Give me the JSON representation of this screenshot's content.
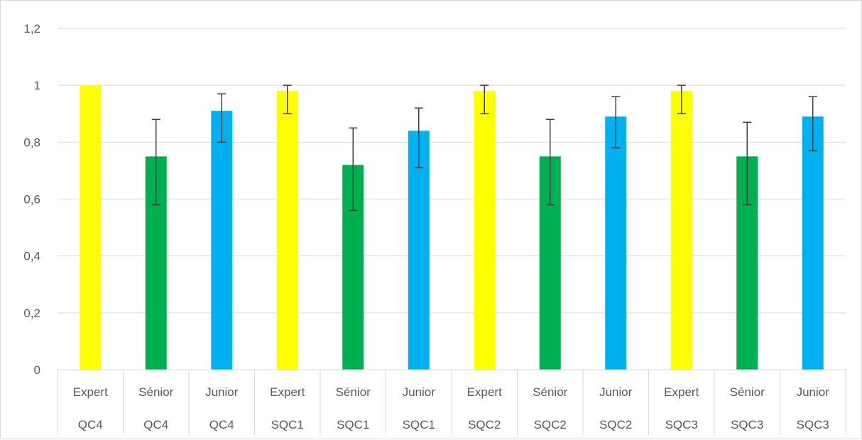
{
  "chart_data": {
    "type": "bar",
    "title": "",
    "xlabel": "",
    "ylabel": "",
    "ylim": [
      0,
      1.2
    ],
    "yticks": [
      "0",
      "0,2",
      "0,4",
      "0,6",
      "0,8",
      "1",
      "1,2"
    ],
    "ytick_values": [
      0,
      0.2,
      0.4,
      0.6,
      0.8,
      1.0,
      1.2
    ],
    "grid": true,
    "legend": "none",
    "categories": [
      {
        "level": "Expert",
        "group": "QC4"
      },
      {
        "level": "Sénior",
        "group": "QC4"
      },
      {
        "level": "Junior",
        "group": "QC4"
      },
      {
        "level": "Expert",
        "group": "SQC1"
      },
      {
        "level": "Sénior",
        "group": "SQC1"
      },
      {
        "level": "Junior",
        "group": "SQC1"
      },
      {
        "level": "Expert",
        "group": "SQC2"
      },
      {
        "level": "Sénior",
        "group": "SQC2"
      },
      {
        "level": "Junior",
        "group": "SQC2"
      },
      {
        "level": "Expert",
        "group": "SQC3"
      },
      {
        "level": "Sénior",
        "group": "SQC3"
      },
      {
        "level": "Junior",
        "group": "SQC3"
      }
    ],
    "values": [
      1.0,
      0.75,
      0.91,
      0.98,
      0.72,
      0.84,
      0.98,
      0.75,
      0.89,
      0.98,
      0.75,
      0.89
    ],
    "error_low": [
      null,
      0.58,
      0.8,
      0.9,
      0.56,
      0.71,
      0.9,
      0.58,
      0.78,
      0.9,
      0.58,
      0.77
    ],
    "error_high": [
      null,
      0.88,
      0.97,
      1.0,
      0.85,
      0.92,
      1.0,
      0.88,
      0.96,
      1.0,
      0.87,
      0.96
    ],
    "colors": {
      "Expert": "#ffff00",
      "Sénior": "#00b050",
      "Junior": "#00b0f0",
      "gridline": "#d9d9d9",
      "error_bar": "#404040"
    }
  }
}
